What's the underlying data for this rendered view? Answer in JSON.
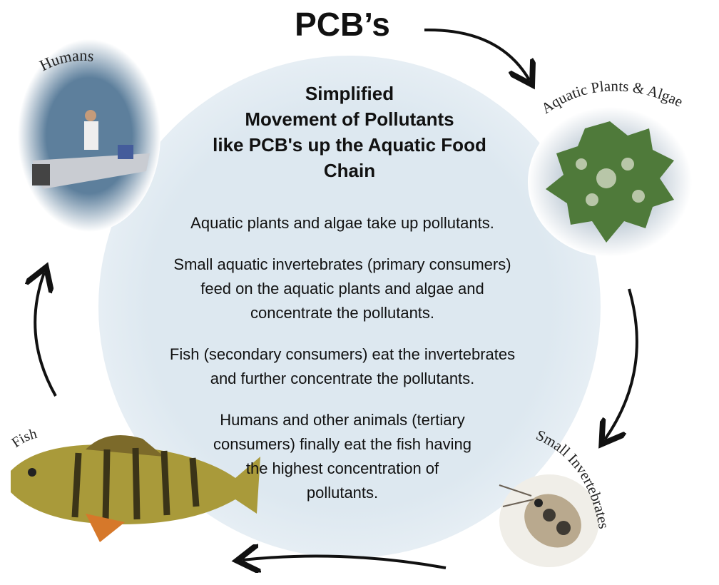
{
  "title": "PCB’s",
  "center": {
    "heading": [
      "Simplified",
      "Movement of Pollutants",
      "like PCB's up the Aquatic Food",
      "Chain"
    ],
    "paragraphs": [
      [
        "Aquatic plants and algae take up pollutants."
      ],
      [
        "Small aquatic invertebrates (primary consumers)",
        "feed on the aquatic plants and algae and",
        "concentrate the pollutants."
      ],
      [
        "Fish (secondary consumers) eat the invertebrates",
        "and further concentrate the pollutants."
      ],
      [
        "Humans and other animals (tertiary",
        "consumers) finally eat the fish having",
        "the highest concentration of",
        "pollutants."
      ]
    ]
  },
  "nodes": [
    {
      "label": "Humans"
    },
    {
      "label": "Aquatic Plants & Algae"
    },
    {
      "label": "Small Invertebrates"
    },
    {
      "label": "Fish"
    }
  ]
}
